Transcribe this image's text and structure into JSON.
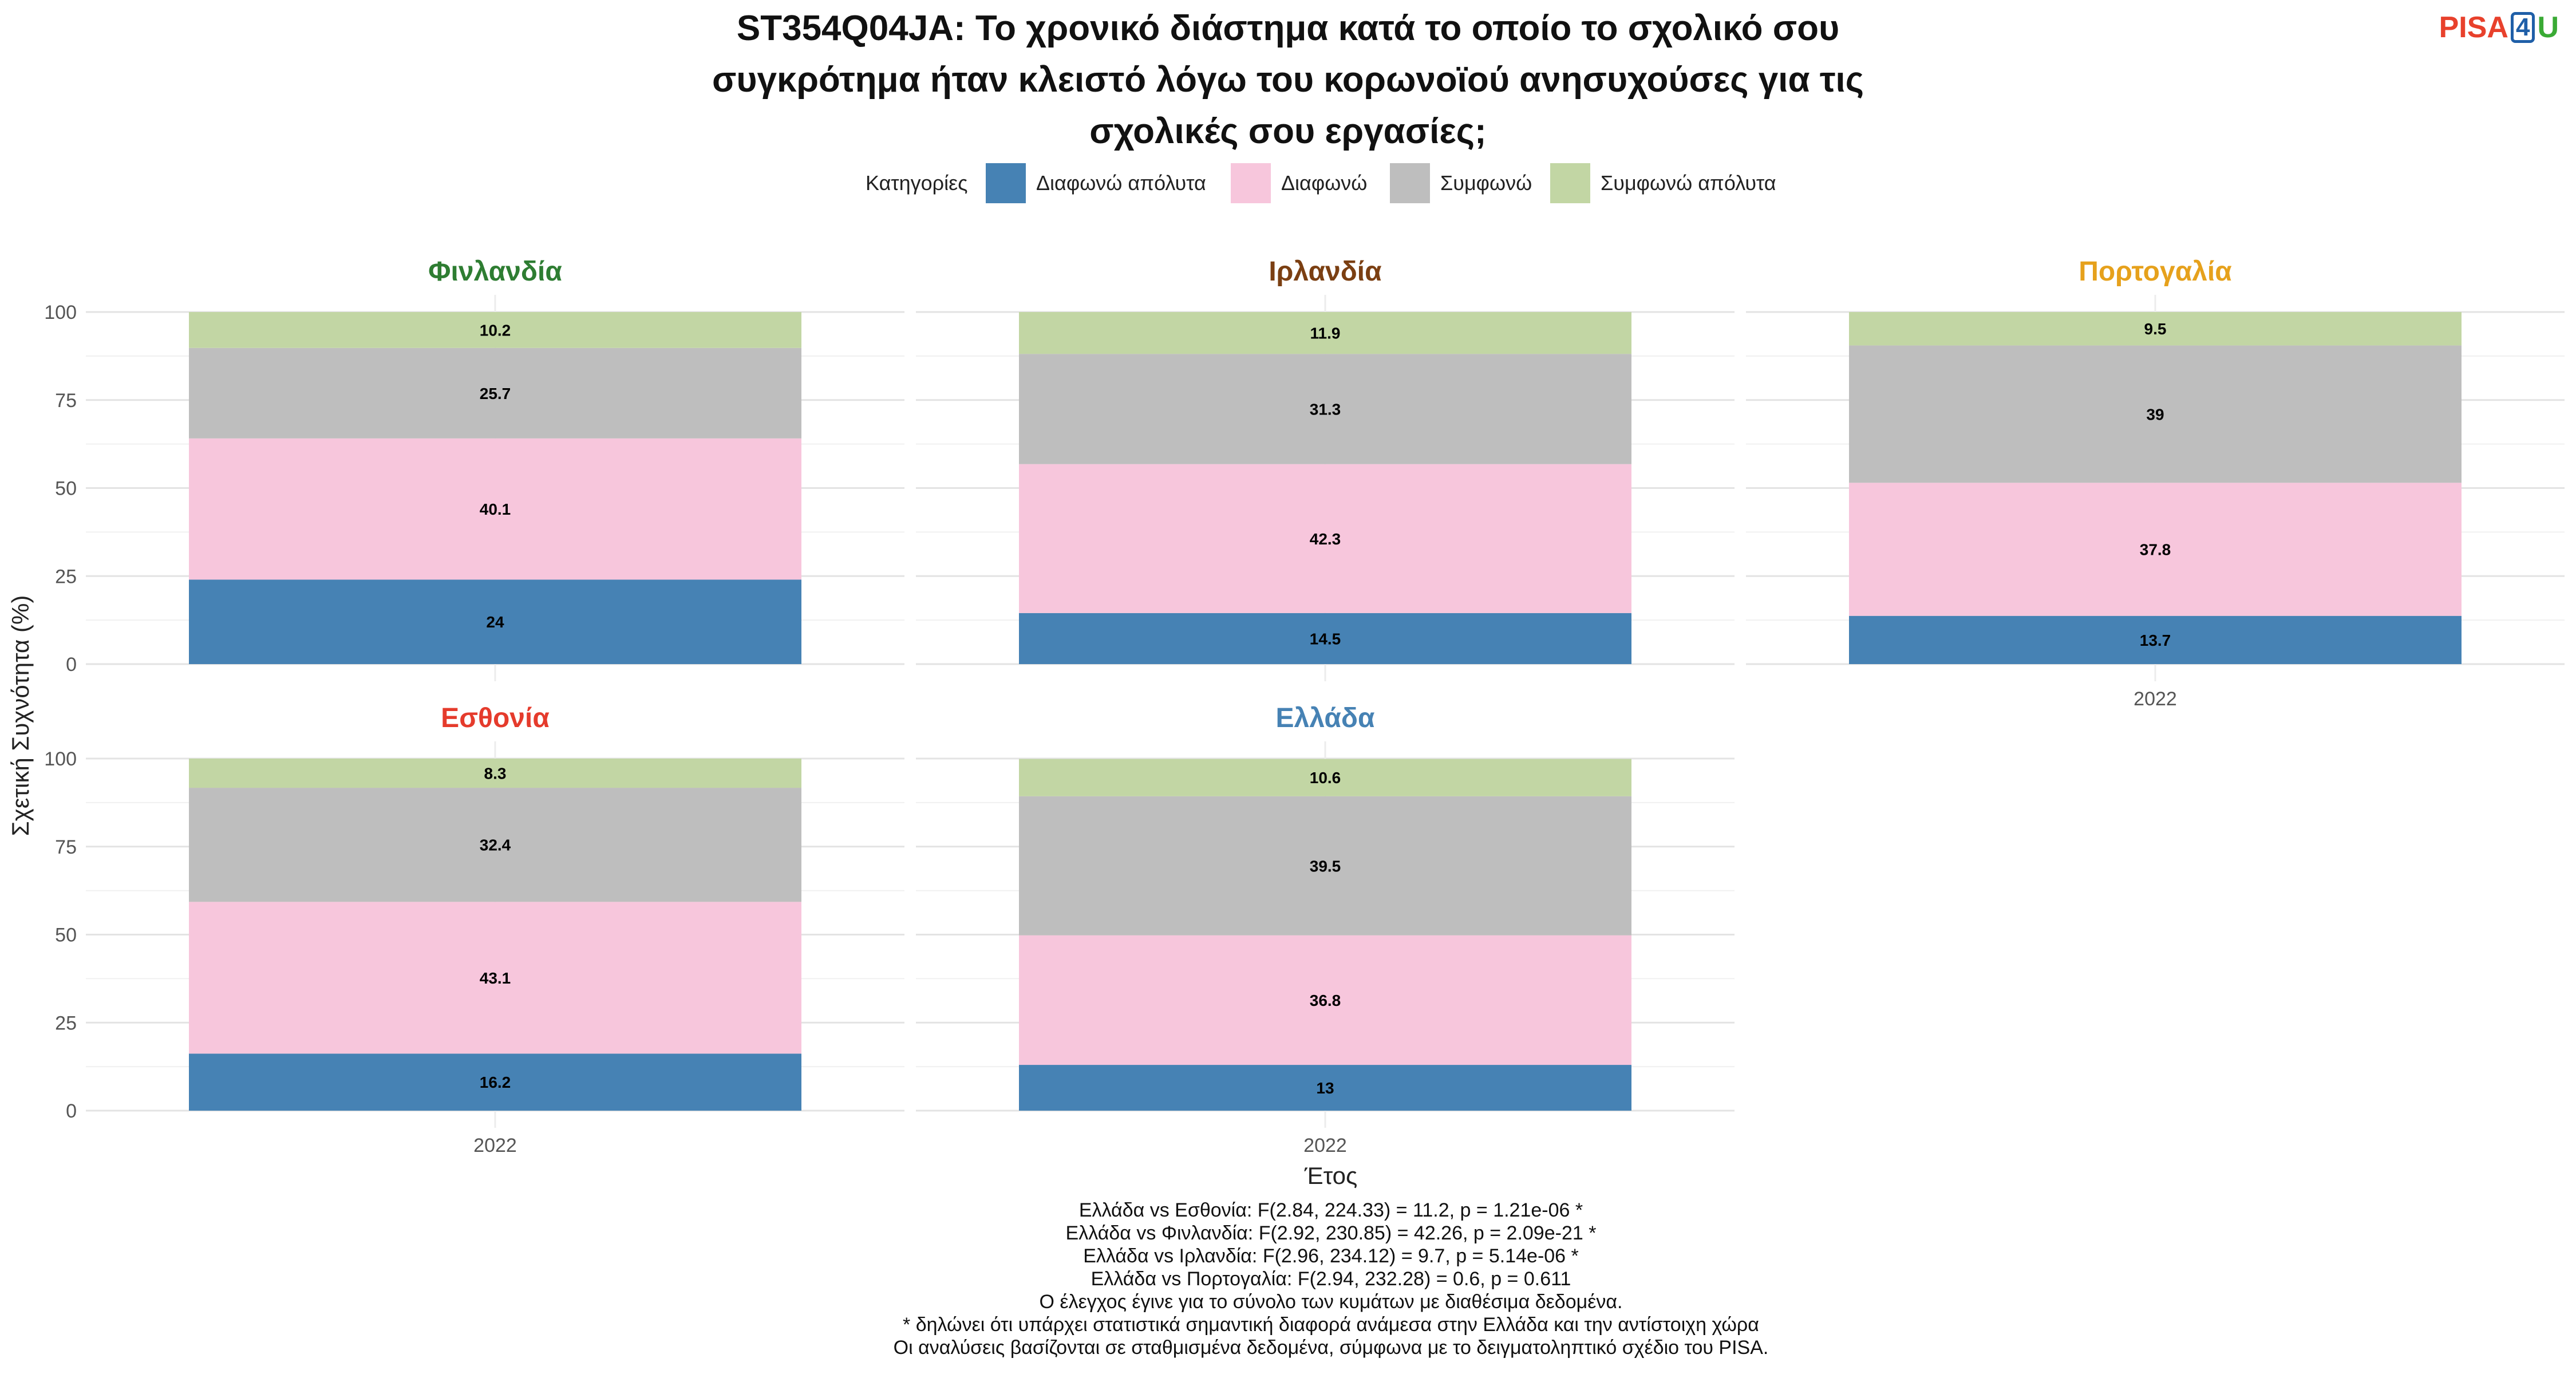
{
  "chart_data": {
    "type": "bar",
    "stacked": true,
    "title": "ST354Q04JA: Το χρονικό διάστημα κατά το οποίο το σχολικό σου συγκρότημα ήταν κλειστό λόγω του κορωνοϊού ανησυχούσες για τις σχολικές σου εργασίες;",
    "title_lines": [
      "ST354Q04JA: Το χρονικό διάστημα κατά το οποίο το σχολικό σου",
      "συγκρότημα ήταν κλειστό λόγω του κορωνοϊού ανησυχούσες για τις",
      "σχολικές σου εργασίες;"
    ],
    "legend_title": "Κατηγορίες",
    "legend_position": "top",
    "categories": [
      "Διαφωνώ απόλυτα",
      "Διαφωνώ",
      "Συμφωνώ",
      "Συμφωνώ απόλυτα"
    ],
    "category_colors": [
      "#4682b4",
      "#f7c6dc",
      "#bebebe",
      "#c2d6a4"
    ],
    "xlabel": "Έτος",
    "ylabel": "Σχετική Συχνότητα (%)",
    "ylim": [
      0,
      100
    ],
    "yticks": [
      0,
      25,
      50,
      75,
      100
    ],
    "grid": true,
    "panels": [
      {
        "name": "Φινλανδία",
        "color": "#2e7d32",
        "x": "2022",
        "values": [
          24,
          40.1,
          25.7,
          10.2
        ]
      },
      {
        "name": "Ιρλανδία",
        "color": "#7b3f12",
        "x": "2022",
        "values": [
          14.5,
          42.3,
          31.3,
          11.9
        ]
      },
      {
        "name": "Πορτογαλία",
        "color": "#e6a11c",
        "x": "2022",
        "values": [
          13.7,
          37.8,
          39,
          9.5
        ]
      },
      {
        "name": "Εσθονία",
        "color": "#e53b2c",
        "x": "2022",
        "values": [
          16.2,
          43.1,
          32.4,
          8.3
        ]
      },
      {
        "name": "Ελλάδα",
        "color": "#4682b4",
        "x": "2022",
        "values": [
          13,
          36.8,
          39.5,
          10.6
        ]
      }
    ],
    "notes": [
      "Ελλάδα vs Εσθονία: F(2.84, 224.33) = 11.2, p = 1.21e-06 *",
      "Ελλάδα vs Φινλανδία: F(2.92, 230.85) = 42.26, p = 2.09e-21 *",
      "Ελλάδα vs Ιρλανδία: F(2.96, 234.12) = 9.7, p = 5.14e-06 *",
      "Ελλάδα vs Πορτογαλία: F(2.94, 232.28) = 0.6, p = 0.611",
      "Ο έλεγχος έγινε για το σύνολο των κυμάτων με διαθέσιμα δεδομένα.",
      "* δηλώνει ότι υπάρχει στατιστικά σημαντική διαφορά ανάμεσα στην Ελλάδα και την αντίστοιχη χώρα",
      "Οι αναλύσεις βασίζονται σε σταθμισμένα δεδομένα, σύμφωνα με το δειγματοληπτικό σχέδιο του PISA."
    ]
  },
  "logo": {
    "part1": "PISA",
    "part2": "4",
    "part3": "U"
  }
}
